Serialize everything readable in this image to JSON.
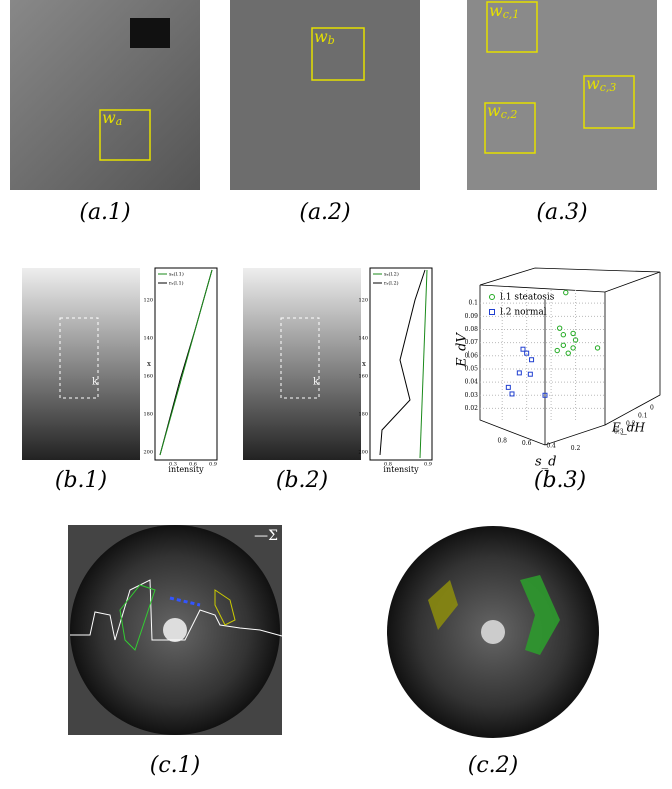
{
  "row_a": [
    {
      "caption": "(a.1)",
      "boxes": [
        {
          "base": "w",
          "sub": "a"
        }
      ]
    },
    {
      "caption": "(a.2)",
      "boxes": [
        {
          "base": "w",
          "sub": "b"
        }
      ]
    },
    {
      "caption": "(a.3)",
      "boxes": [
        {
          "base": "w",
          "sub": "c,1"
        },
        {
          "base": "w",
          "sub": "c,2"
        },
        {
          "base": "w",
          "sub": "c,3"
        }
      ]
    }
  ],
  "row_b": [
    {
      "caption": "(b.1)",
      "roi_label": "k",
      "legend": [
        "sₐ(l.1)",
        "rₐ(l.1)"
      ],
      "xlabel": "intensity",
      "ylabel": "x",
      "xticks": [
        "0.3",
        "0.6",
        "0.9"
      ],
      "yticks": [
        "120",
        "140",
        "160",
        "180",
        "200"
      ]
    },
    {
      "caption": "(b.2)",
      "roi_label": "k",
      "legend": [
        "sₐ(l.2)",
        "rₐ(l.2)"
      ],
      "xlabel": "intensity",
      "ylabel": "x",
      "xticks": [
        "0.8",
        "0.9"
      ],
      "yticks": [
        "120",
        "140",
        "160",
        "180",
        "200"
      ]
    }
  ],
  "chart_data": {
    "type": "scatter",
    "caption": "(b.3)",
    "xlabel": "s_d",
    "ylabel": "E_dV",
    "zlabel": "E_dH",
    "xlim": [
      0.9,
      0.0
    ],
    "xticks": [
      0.8,
      0.6,
      0.4,
      0.2
    ],
    "ylim": [
      0.015,
      0.11
    ],
    "yticks": [
      0.02,
      0.03,
      0.04,
      0.05,
      0.06,
      0.07,
      0.08,
      0.09,
      0.1
    ],
    "zticks": [
      0,
      0.1,
      0.2,
      0.3
    ],
    "grid": true,
    "series": [
      {
        "name": "l.1 steatosis",
        "color": "#22aa22",
        "marker": "circle",
        "x": [
          0.28,
          0.33,
          0.3,
          0.22,
          0.2,
          0.22,
          0.3,
          0.35,
          0.26,
          0.02
        ],
        "values": [
          0.108,
          0.081,
          0.076,
          0.077,
          0.072,
          0.066,
          0.068,
          0.064,
          0.062,
          0.066
        ]
      },
      {
        "name": "l.2 normal",
        "color": "#1f3fd0",
        "marker": "square",
        "x": [
          0.6,
          0.63,
          0.56,
          0.57,
          0.66,
          0.75,
          0.72,
          0.45
        ],
        "values": [
          0.062,
          0.065,
          0.057,
          0.046,
          0.047,
          0.036,
          0.031,
          0.03
        ]
      }
    ]
  },
  "row_c": [
    {
      "caption": "(c.1)",
      "legend": "—Σ"
    },
    {
      "caption": "(c.2)"
    }
  ]
}
